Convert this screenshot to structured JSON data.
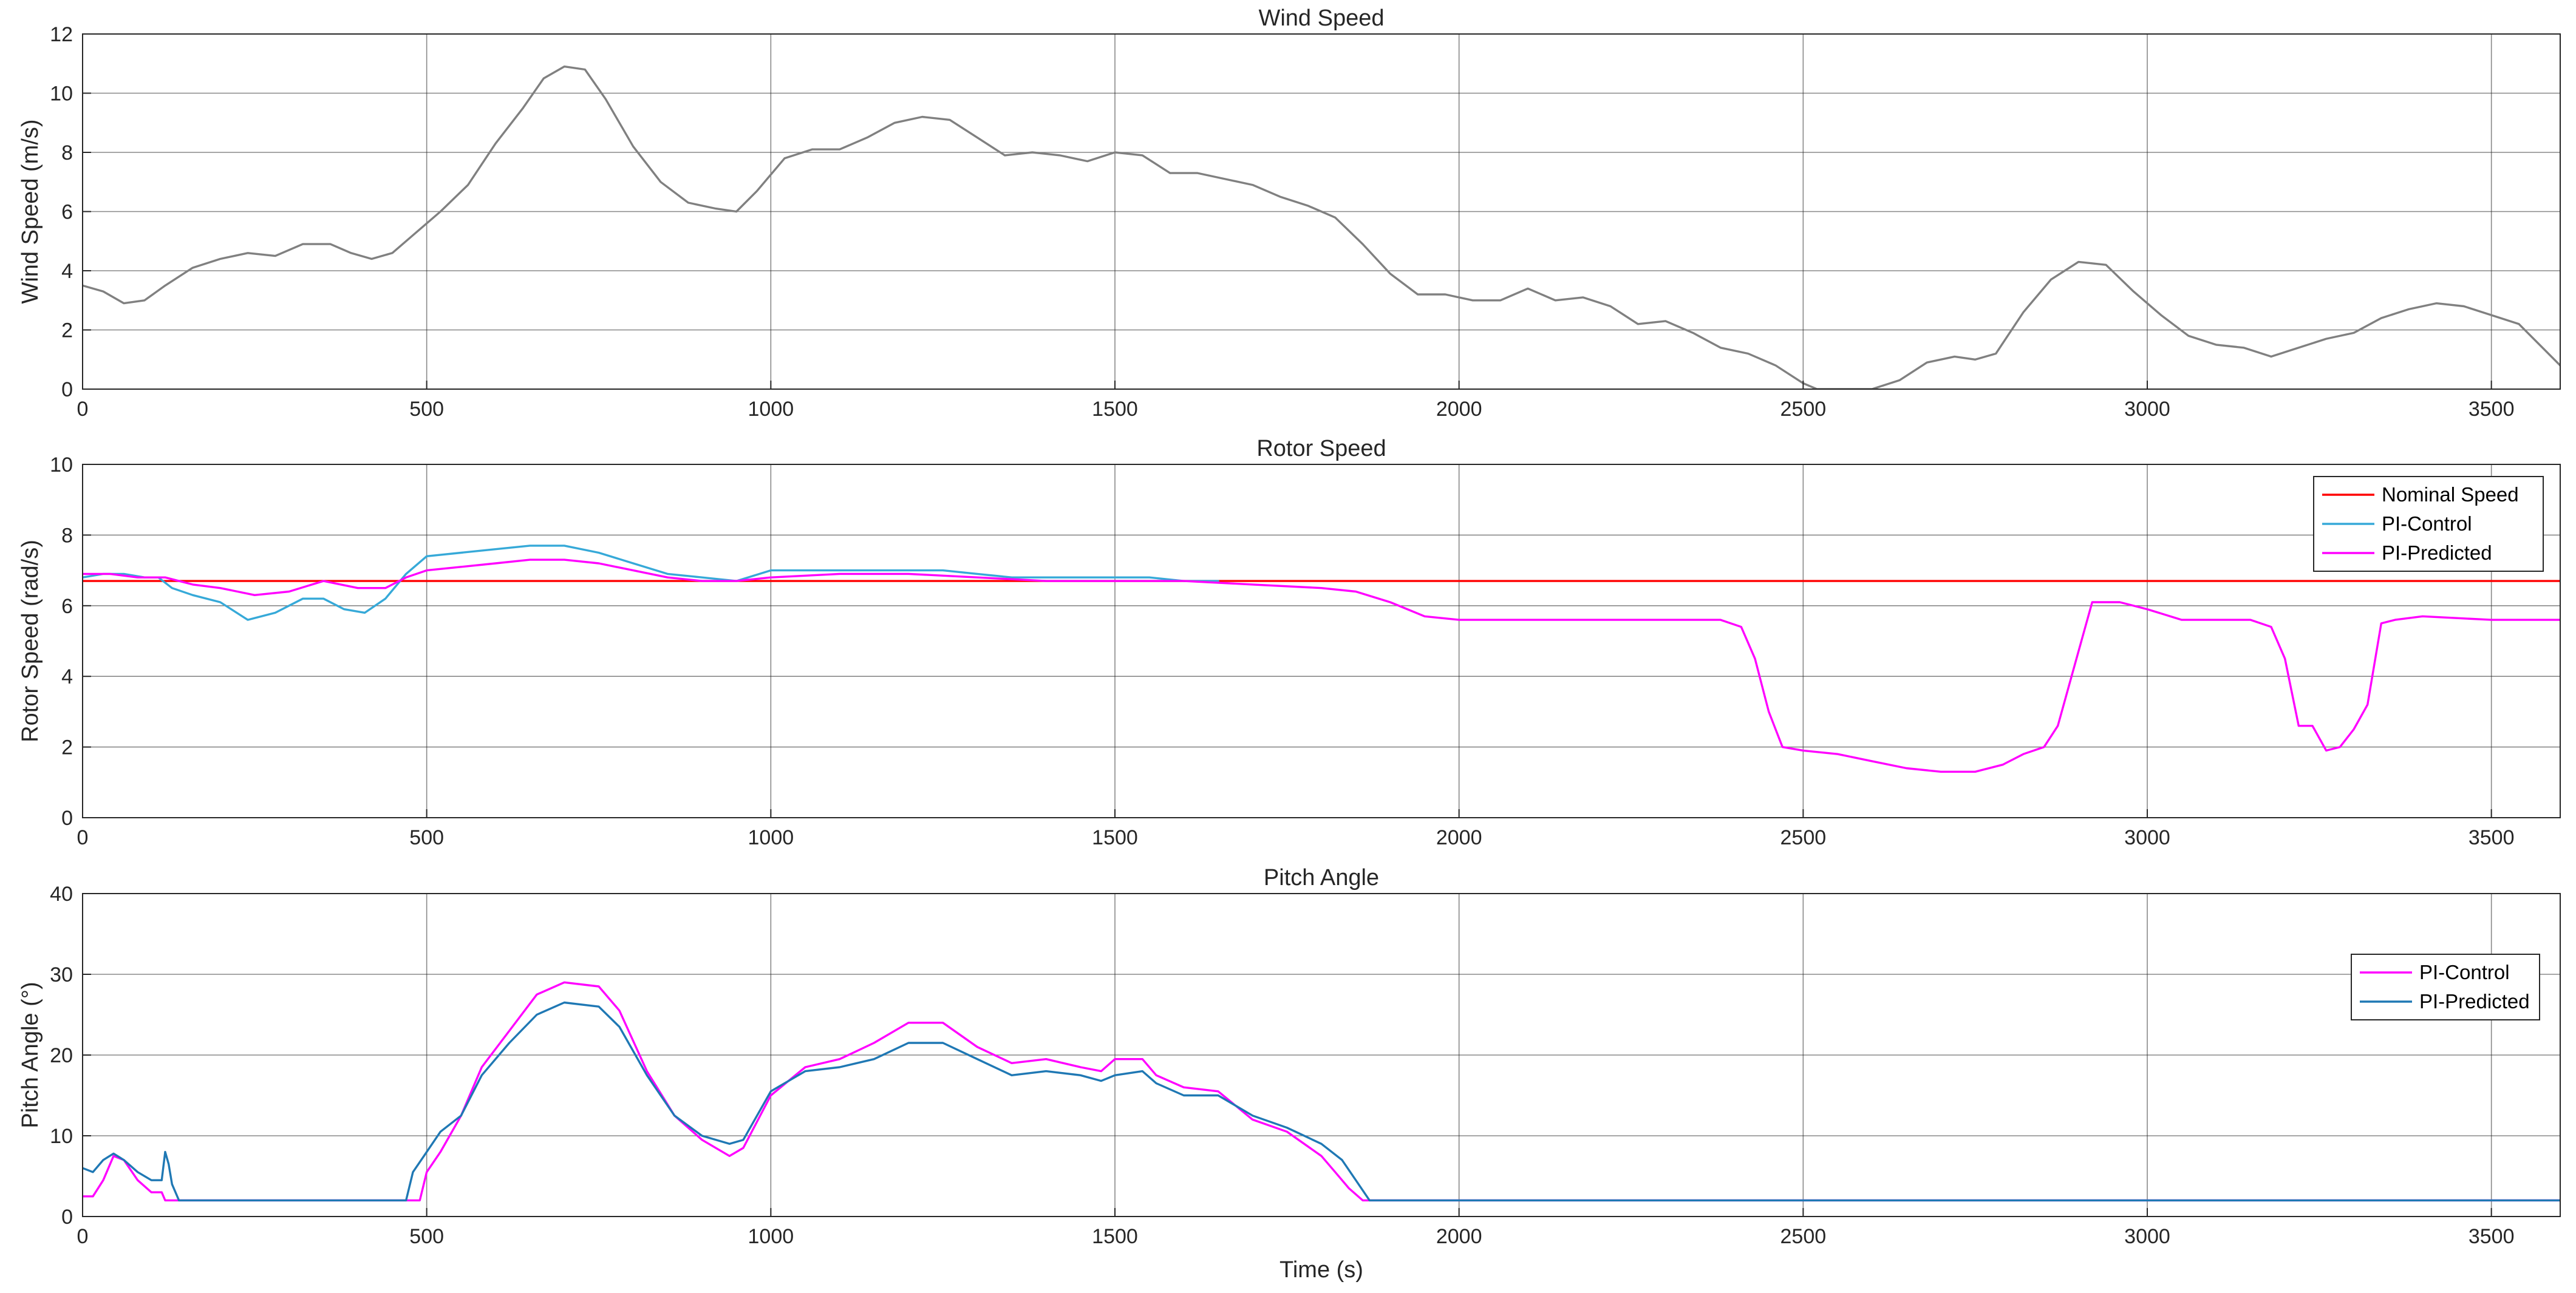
{
  "chart_data": [
    {
      "type": "line",
      "title": "Wind Speed",
      "xlabel": "",
      "ylabel": "Wind Speed (m/s)",
      "xlim": [
        0,
        3600
      ],
      "ylim": [
        0,
        12
      ],
      "xticks": [
        0,
        500,
        1000,
        1500,
        2000,
        2500,
        3000,
        3500
      ],
      "yticks": [
        0,
        2,
        4,
        6,
        8,
        10,
        12
      ],
      "grid": true,
      "legend": null,
      "series": [
        {
          "name": "",
          "color": "#808080",
          "x": [
            0,
            30,
            60,
            90,
            120,
            160,
            200,
            240,
            280,
            320,
            360,
            390,
            420,
            450,
            480,
            520,
            560,
            600,
            640,
            670,
            700,
            730,
            760,
            800,
            840,
            880,
            920,
            950,
            980,
            1020,
            1060,
            1100,
            1140,
            1180,
            1220,
            1260,
            1300,
            1340,
            1380,
            1420,
            1460,
            1500,
            1540,
            1580,
            1620,
            1660,
            1700,
            1740,
            1780,
            1820,
            1860,
            1900,
            1940,
            1980,
            2020,
            2060,
            2100,
            2140,
            2180,
            2220,
            2260,
            2300,
            2340,
            2380,
            2420,
            2460,
            2500,
            2520,
            2540,
            2560,
            2600,
            2640,
            2680,
            2720,
            2750,
            2780,
            2820,
            2860,
            2900,
            2940,
            2980,
            3020,
            3060,
            3100,
            3140,
            3180,
            3220,
            3260,
            3300,
            3340,
            3380,
            3420,
            3460,
            3500,
            3540,
            3600
          ],
          "y": [
            3.5,
            3.3,
            2.9,
            3.0,
            3.5,
            4.1,
            4.4,
            4.6,
            4.5,
            4.9,
            4.9,
            4.6,
            4.4,
            4.6,
            5.2,
            6.0,
            6.9,
            8.3,
            9.5,
            10.5,
            10.9,
            10.8,
            9.8,
            8.2,
            7.0,
            6.3,
            6.1,
            6.0,
            6.7,
            7.8,
            8.1,
            8.1,
            8.5,
            9.0,
            9.2,
            9.1,
            8.5,
            7.9,
            8.0,
            7.9,
            7.7,
            8.0,
            7.9,
            7.3,
            7.3,
            7.1,
            6.9,
            6.5,
            6.2,
            5.8,
            4.9,
            3.9,
            3.2,
            3.2,
            3.0,
            3.0,
            3.4,
            3.0,
            3.1,
            2.8,
            2.2,
            2.3,
            1.9,
            1.4,
            1.2,
            0.8,
            0.2,
            0.0,
            0.0,
            0.0,
            0.0,
            0.3,
            0.9,
            1.1,
            1.0,
            1.2,
            2.6,
            3.7,
            4.3,
            4.2,
            3.3,
            2.5,
            1.8,
            1.5,
            1.4,
            1.1,
            1.4,
            1.7,
            1.9,
            2.4,
            2.7,
            2.9,
            2.8,
            2.5,
            2.2,
            0.8
          ]
        }
      ]
    },
    {
      "type": "line",
      "title": "Rotor Speed",
      "xlabel": "",
      "ylabel": "Rotor Speed (rad/s)",
      "xlim": [
        0,
        3600
      ],
      "ylim": [
        0,
        10
      ],
      "xticks": [
        0,
        500,
        1000,
        1500,
        2000,
        2500,
        3000,
        3500
      ],
      "yticks": [
        0,
        2,
        4,
        6,
        8,
        10
      ],
      "grid": true,
      "legend": "top-right",
      "series": [
        {
          "name": "Nominal Speed",
          "color": "#ff0000",
          "x": [
            0,
            3600
          ],
          "y": [
            6.7,
            6.7
          ]
        },
        {
          "name": "PI-Control",
          "color": "#36a9d8",
          "x": [
            0,
            30,
            60,
            90,
            110,
            130,
            160,
            200,
            240,
            280,
            320,
            350,
            380,
            410,
            440,
            470,
            500,
            550,
            600,
            650,
            700,
            750,
            800,
            850,
            900,
            950,
            1000,
            1050,
            1100,
            1150,
            1200,
            1250,
            1300,
            1350,
            1400,
            1450,
            1500,
            1550,
            1600,
            1650
          ],
          "y": [
            6.8,
            6.9,
            6.9,
            6.8,
            6.8,
            6.5,
            6.3,
            6.1,
            5.6,
            5.8,
            6.2,
            6.2,
            5.9,
            5.8,
            6.2,
            6.9,
            7.4,
            7.5,
            7.6,
            7.7,
            7.7,
            7.5,
            7.2,
            6.9,
            6.8,
            6.7,
            7.0,
            7.0,
            7.0,
            7.0,
            7.0,
            7.0,
            6.9,
            6.8,
            6.8,
            6.8,
            6.8,
            6.8,
            6.7,
            6.7
          ]
        },
        {
          "name": "PI-Predicted",
          "color": "#ff00ff",
          "x": [
            0,
            40,
            80,
            120,
            160,
            200,
            250,
            300,
            350,
            400,
            440,
            470,
            500,
            550,
            600,
            650,
            700,
            750,
            800,
            850,
            900,
            950,
            1000,
            1100,
            1200,
            1300,
            1400,
            1500,
            1600,
            1700,
            1800,
            1850,
            1900,
            1950,
            2000,
            2100,
            2200,
            2300,
            2380,
            2410,
            2430,
            2450,
            2470,
            2500,
            2550,
            2600,
            2650,
            2700,
            2750,
            2790,
            2820,
            2850,
            2870,
            2890,
            2920,
            2960,
            3000,
            3050,
            3100,
            3150,
            3180,
            3200,
            3220,
            3240,
            3260,
            3280,
            3300,
            3320,
            3340,
            3360,
            3400,
            3500,
            3600
          ],
          "y": [
            6.9,
            6.9,
            6.8,
            6.8,
            6.6,
            6.5,
            6.3,
            6.4,
            6.7,
            6.5,
            6.5,
            6.8,
            7.0,
            7.1,
            7.2,
            7.3,
            7.3,
            7.2,
            7.0,
            6.8,
            6.7,
            6.7,
            6.8,
            6.9,
            6.9,
            6.8,
            6.7,
            6.7,
            6.7,
            6.6,
            6.5,
            6.4,
            6.1,
            5.7,
            5.6,
            5.6,
            5.6,
            5.6,
            5.6,
            5.4,
            4.5,
            3.0,
            2.0,
            1.9,
            1.8,
            1.6,
            1.4,
            1.3,
            1.3,
            1.5,
            1.8,
            2.0,
            2.6,
            4.0,
            6.1,
            6.1,
            5.9,
            5.6,
            5.6,
            5.6,
            5.4,
            4.5,
            2.6,
            2.6,
            1.9,
            2.0,
            2.5,
            3.2,
            5.5,
            5.6,
            5.7,
            5.6,
            5.6
          ]
        }
      ]
    },
    {
      "type": "line",
      "title": "Pitch Angle",
      "xlabel": "Time (s)",
      "ylabel": "Pitch Angle (°)",
      "xlim": [
        0,
        3600
      ],
      "ylim": [
        0,
        40
      ],
      "xticks": [
        0,
        500,
        1000,
        1500,
        2000,
        2500,
        3000,
        3500
      ],
      "yticks": [
        0,
        10,
        20,
        30,
        40
      ],
      "grid": true,
      "legend": "right",
      "series": [
        {
          "name": "PI-Control",
          "color": "#ff00ff",
          "x": [
            0,
            15,
            30,
            45,
            60,
            80,
            100,
            115,
            120,
            130,
            140,
            160,
            200,
            400,
            490,
            500,
            520,
            550,
            580,
            620,
            660,
            700,
            750,
            780,
            820,
            860,
            900,
            940,
            960,
            1000,
            1050,
            1100,
            1150,
            1200,
            1250,
            1300,
            1350,
            1400,
            1450,
            1480,
            1500,
            1540,
            1560,
            1600,
            1650,
            1700,
            1750,
            1800,
            1820,
            1840,
            1860,
            2000,
            3600
          ],
          "y": [
            2.5,
            2.5,
            4.5,
            7.5,
            7.0,
            4.5,
            3.0,
            3.0,
            2.0,
            2.0,
            2.0,
            2.0,
            2.0,
            2.0,
            2.0,
            5.5,
            8.0,
            12.5,
            18.5,
            23.0,
            27.5,
            29.0,
            28.5,
            25.5,
            18.0,
            12.5,
            9.5,
            7.5,
            8.5,
            15.0,
            18.5,
            19.5,
            21.5,
            24.0,
            24.0,
            21.0,
            19.0,
            19.5,
            18.5,
            18.0,
            19.5,
            19.5,
            17.5,
            16.0,
            15.5,
            12.0,
            10.5,
            7.5,
            5.5,
            3.5,
            2.0,
            2.0,
            2.0
          ]
        },
        {
          "name": "PI-Predicted",
          "color": "#1f78b4",
          "x": [
            0,
            15,
            30,
            45,
            60,
            80,
            100,
            115,
            120,
            125,
            130,
            140,
            160,
            200,
            400,
            470,
            480,
            500,
            520,
            550,
            580,
            620,
            660,
            700,
            750,
            780,
            820,
            860,
            900,
            940,
            960,
            1000,
            1050,
            1100,
            1150,
            1200,
            1250,
            1300,
            1350,
            1400,
            1450,
            1480,
            1500,
            1540,
            1560,
            1600,
            1650,
            1700,
            1750,
            1800,
            1830,
            1850,
            1870,
            2000,
            3600
          ],
          "y": [
            6.0,
            5.5,
            7.0,
            7.8,
            7.0,
            5.5,
            4.5,
            4.5,
            8.0,
            6.5,
            4.0,
            2.0,
            2.0,
            2.0,
            2.0,
            2.0,
            5.5,
            8.0,
            10.5,
            12.5,
            17.5,
            21.5,
            25.0,
            26.5,
            26.0,
            23.5,
            17.5,
            12.5,
            10.0,
            9.0,
            9.5,
            15.5,
            18.0,
            18.5,
            19.5,
            21.5,
            21.5,
            19.5,
            17.5,
            18.0,
            17.5,
            16.8,
            17.5,
            18.0,
            16.5,
            15.0,
            15.0,
            12.5,
            11.0,
            9.0,
            7.0,
            4.5,
            2.0,
            2.0,
            2.0
          ]
        }
      ]
    }
  ]
}
